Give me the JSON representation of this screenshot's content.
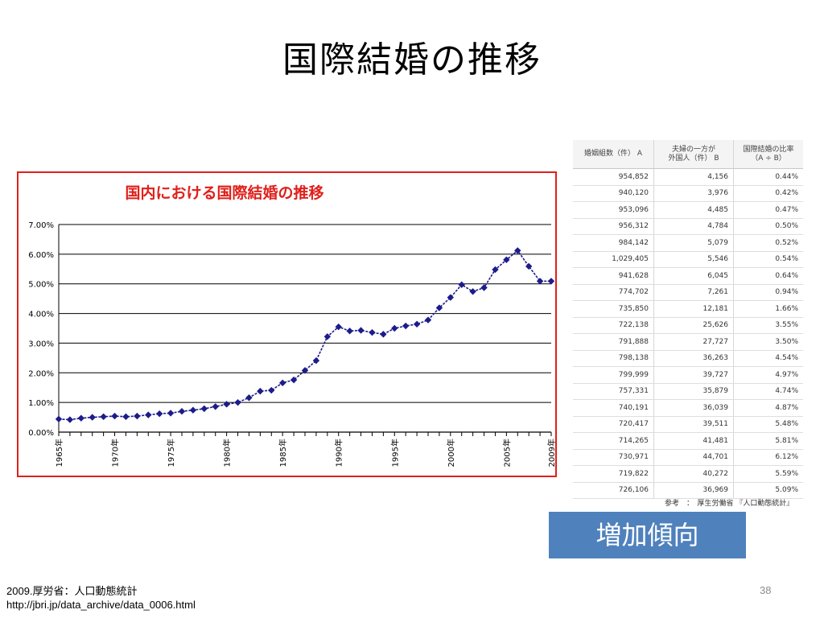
{
  "slide": {
    "title": "国際結婚の推移",
    "trend_label": "増加傾向",
    "source_line1": "2009.厚労省：人口動態統計",
    "source_line2": "http://jbri.jp/data_archive/data_0006.html",
    "page_number": "38"
  },
  "chart_data": {
    "type": "line",
    "title": "国内における国際結婚の推移",
    "title_color": "#e0201b",
    "series_color": "#1c1c8c",
    "xlabel": "",
    "ylabel": "",
    "ylim": [
      0,
      7
    ],
    "yticks": [
      "0.00%",
      "1.00%",
      "2.00%",
      "3.00%",
      "4.00%",
      "5.00%",
      "6.00%",
      "7.00%"
    ],
    "xtick_labels": [
      {
        "year": 1965,
        "label": "1965年"
      },
      {
        "year": 1970,
        "label": "1970年"
      },
      {
        "year": 1975,
        "label": "1975年"
      },
      {
        "year": 1980,
        "label": "1980年"
      },
      {
        "year": 1985,
        "label": "1985年"
      },
      {
        "year": 1990,
        "label": "1990年"
      },
      {
        "year": 1995,
        "label": "1995年"
      },
      {
        "year": 2000,
        "label": "2000年"
      },
      {
        "year": 2005,
        "label": "2005年"
      },
      {
        "year": 2009,
        "label": "2009年"
      }
    ],
    "grid": true,
    "legend": "none",
    "x": [
      1965,
      1966,
      1967,
      1968,
      1969,
      1970,
      1971,
      1972,
      1973,
      1974,
      1975,
      1976,
      1977,
      1978,
      1979,
      1980,
      1981,
      1982,
      1983,
      1984,
      1985,
      1986,
      1987,
      1988,
      1989,
      1990,
      1991,
      1992,
      1993,
      1994,
      1995,
      1996,
      1997,
      1998,
      1999,
      2000,
      2001,
      2002,
      2003,
      2004,
      2005,
      2006,
      2007,
      2008,
      2009
    ],
    "values": [
      0.44,
      0.42,
      0.47,
      0.5,
      0.52,
      0.54,
      0.52,
      0.54,
      0.58,
      0.62,
      0.64,
      0.7,
      0.74,
      0.79,
      0.86,
      0.94,
      1.0,
      1.16,
      1.38,
      1.41,
      1.66,
      1.76,
      2.08,
      2.41,
      3.22,
      3.55,
      3.41,
      3.43,
      3.36,
      3.3,
      3.5,
      3.58,
      3.64,
      3.78,
      4.19,
      4.54,
      4.97,
      4.74,
      4.87,
      5.48,
      5.81,
      6.12,
      5.59,
      5.09,
      5.09
    ]
  },
  "table": {
    "headers": [
      "婚姻組数（件） A",
      "夫婦の一方が\n外国人（件） B",
      "国際結婚の比率\n（A ÷ B）"
    ],
    "rows": [
      [
        "954,852",
        "4,156",
        "0.44%"
      ],
      [
        "940,120",
        "3,976",
        "0.42%"
      ],
      [
        "953,096",
        "4,485",
        "0.47%"
      ],
      [
        "956,312",
        "4,784",
        "0.50%"
      ],
      [
        "984,142",
        "5,079",
        "0.52%"
      ],
      [
        "1,029,405",
        "5,546",
        "0.54%"
      ],
      [
        "941,628",
        "6,045",
        "0.64%"
      ],
      [
        "774,702",
        "7,261",
        "0.94%"
      ],
      [
        "735,850",
        "12,181",
        "1.66%"
      ],
      [
        "722,138",
        "25,626",
        "3.55%"
      ],
      [
        "791,888",
        "27,727",
        "3.50%"
      ],
      [
        "798,138",
        "36,263",
        "4.54%"
      ],
      [
        "799,999",
        "39,727",
        "4.97%"
      ],
      [
        "757,331",
        "35,879",
        "4.74%"
      ],
      [
        "740,191",
        "36,039",
        "4.87%"
      ],
      [
        "720,417",
        "39,511",
        "5.48%"
      ],
      [
        "714,265",
        "41,481",
        "5.81%"
      ],
      [
        "730,971",
        "44,701",
        "6.12%"
      ],
      [
        "719,822",
        "40,272",
        "5.59%"
      ],
      [
        "726,106",
        "36,969",
        "5.09%"
      ]
    ],
    "source": "参考　：　厚生労働省 『人口動態統計』"
  }
}
